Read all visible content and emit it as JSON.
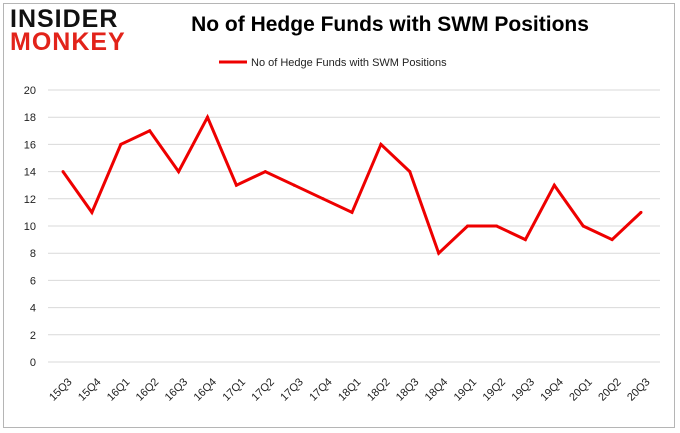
{
  "brand": {
    "logo_top": "INSIDER",
    "logo_bottom": "MONKEY",
    "colors": {
      "dark": "#111111",
      "red": "#e2231a"
    }
  },
  "chart_data": {
    "type": "line",
    "title": "No of Hedge Funds with SWM Positions",
    "xlabel": "",
    "ylabel": "",
    "ylim": [
      0,
      20
    ],
    "yticks": [
      0,
      2,
      4,
      6,
      8,
      10,
      12,
      14,
      16,
      18,
      20
    ],
    "grid": true,
    "legend_position": "top-center",
    "categories": [
      "15Q3",
      "15Q4",
      "16Q1",
      "16Q2",
      "16Q3",
      "16Q4",
      "17Q1",
      "17Q2",
      "17Q3",
      "17Q4",
      "18Q1",
      "18Q2",
      "18Q3",
      "18Q4",
      "19Q1",
      "19Q2",
      "19Q3",
      "19Q4",
      "20Q1",
      "20Q2",
      "20Q3"
    ],
    "series": [
      {
        "name": "No of Hedge Funds with SWM Positions",
        "color": "#ee0000",
        "values": [
          14,
          11,
          16,
          17,
          14,
          18,
          13,
          14,
          13,
          12,
          11,
          16,
          14,
          8,
          10,
          10,
          9,
          13,
          10,
          9,
          11
        ]
      }
    ]
  }
}
